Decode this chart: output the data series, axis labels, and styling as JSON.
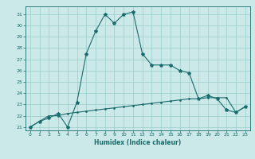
{
  "xlabel": "Humidex (Indice chaleur)",
  "background_color": "#cce9e9",
  "grid_color": "#99cccc",
  "line_color": "#1a6b6b",
  "xlim": [
    -0.5,
    23.5
  ],
  "ylim": [
    20.7,
    31.7
  ],
  "xticks": [
    0,
    1,
    2,
    3,
    4,
    5,
    6,
    7,
    8,
    9,
    10,
    11,
    12,
    13,
    14,
    15,
    16,
    17,
    18,
    19,
    20,
    21,
    22,
    23
  ],
  "yticks": [
    21,
    22,
    23,
    24,
    25,
    26,
    27,
    28,
    29,
    30,
    31
  ],
  "series1_x": [
    0,
    1,
    2,
    3,
    4,
    5,
    6,
    7,
    8,
    9,
    10,
    11,
    12,
    13,
    14,
    15,
    16,
    17,
    18,
    19,
    20,
    21,
    22,
    23
  ],
  "series1_y": [
    21.0,
    21.5,
    21.8,
    22.2,
    21.0,
    23.2,
    27.5,
    29.5,
    31.0,
    30.2,
    31.0,
    31.2,
    27.5,
    26.5,
    26.5,
    26.5,
    26.0,
    25.8,
    23.5,
    23.8,
    23.5,
    22.5,
    22.3,
    22.8
  ],
  "series2_x": [
    0,
    1,
    2,
    3,
    4,
    5,
    6,
    7,
    8,
    9,
    10,
    11,
    12,
    13,
    14,
    15,
    16,
    17,
    18,
    19,
    20,
    21,
    22,
    23
  ],
  "series2_y": [
    21.0,
    21.5,
    22.0,
    22.0,
    22.2,
    22.3,
    22.4,
    22.5,
    22.6,
    22.7,
    22.8,
    22.9,
    23.0,
    23.1,
    23.2,
    23.3,
    23.4,
    23.5,
    23.5,
    23.6,
    23.6,
    23.6,
    22.3,
    22.8
  ]
}
